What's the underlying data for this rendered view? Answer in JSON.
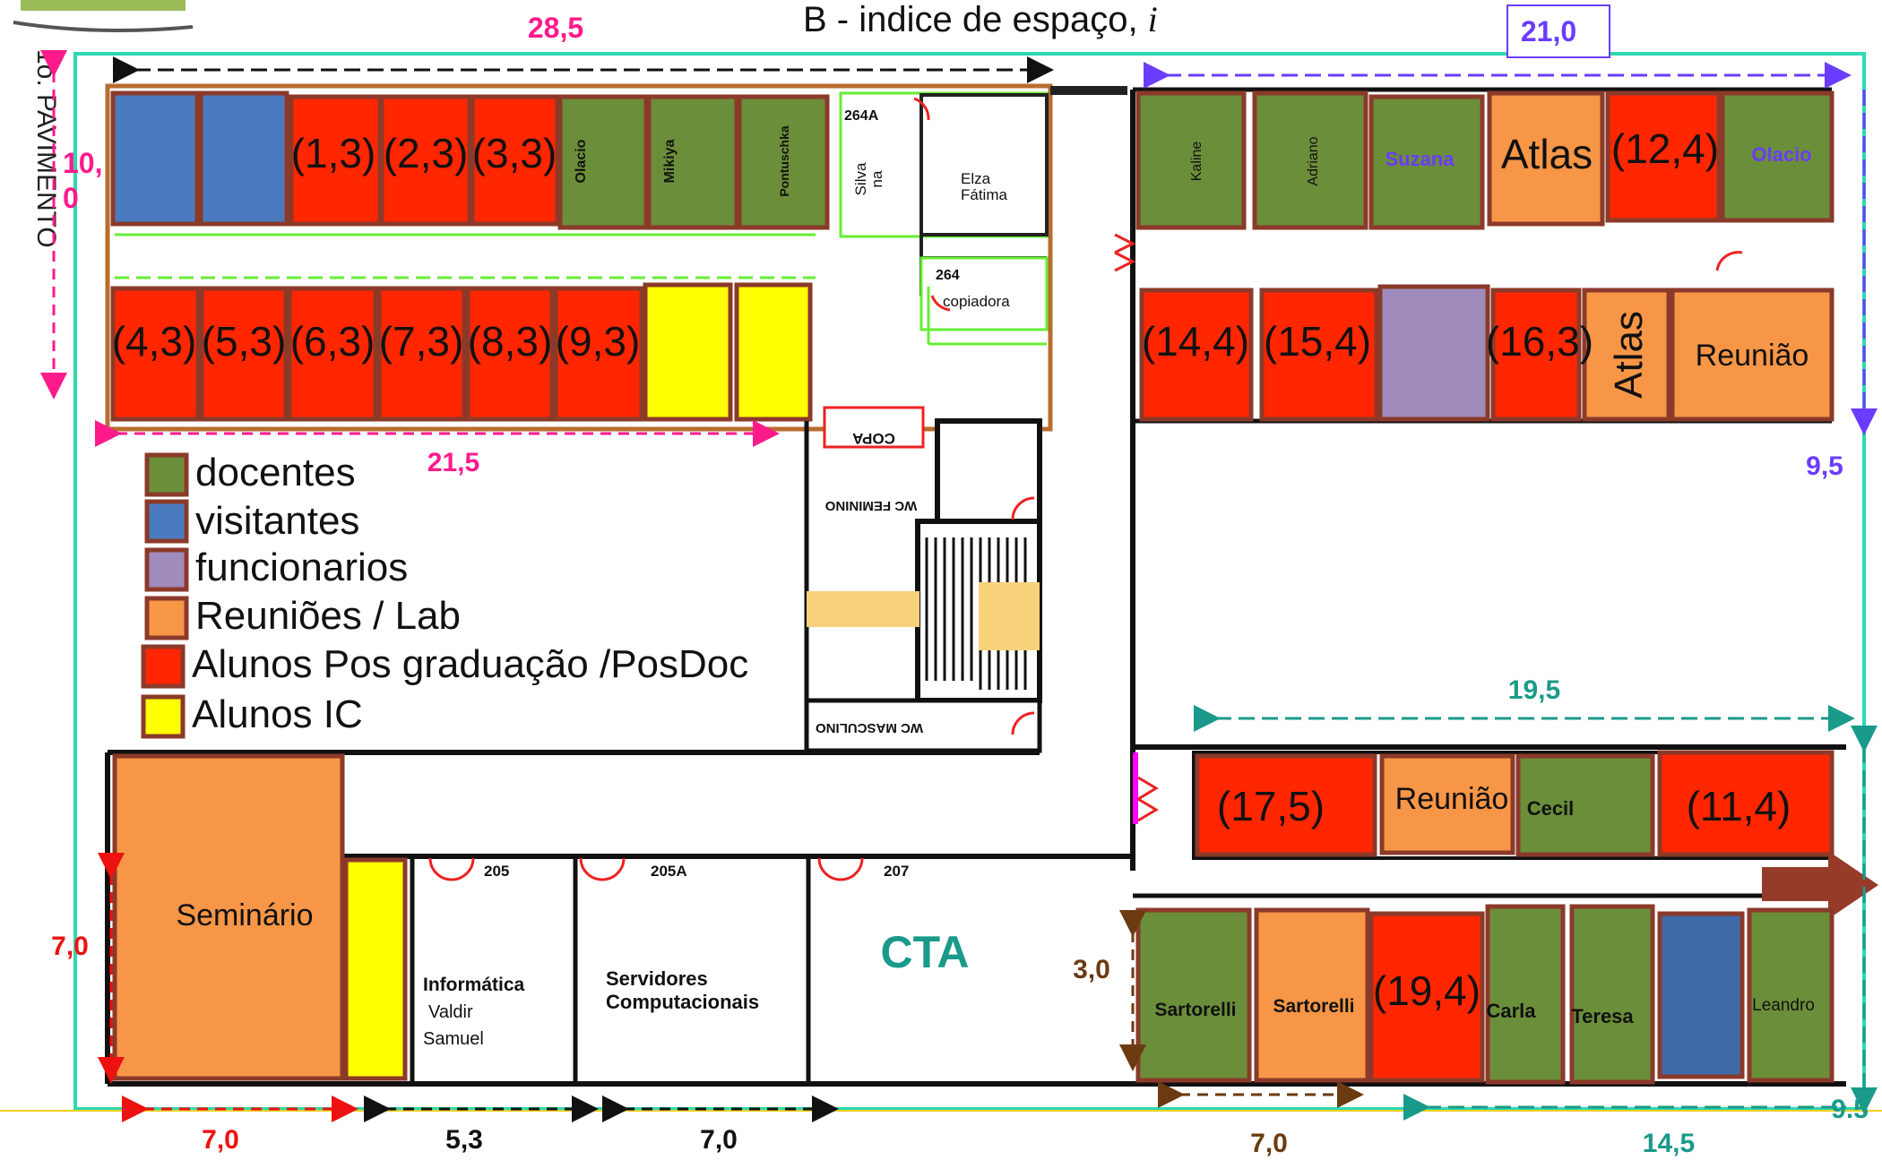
{
  "title": "B - indice de espaço, ",
  "title_symbol": "i",
  "floor_label": "1o. PAVIMENTO",
  "legend": [
    {
      "label": "docentes",
      "color": "#6b8e3a"
    },
    {
      "label": "visitantes",
      "color": "#4a7bbf"
    },
    {
      "label": "funcionarios",
      "color": "#a08cbc"
    },
    {
      "label": "Reuniões / Lab",
      "color": "#f79646"
    },
    {
      "label": "Alunos Pos graduação /PosDoc",
      "color": "#ff2600"
    },
    {
      "label": "Alunos IC",
      "color": "#ffff00"
    }
  ],
  "dimensions": {
    "top_left_width": "28,5",
    "top_right_width": "21,0",
    "left_height_a": "10,",
    "left_height_b": "0",
    "left_block_width": "21,5",
    "right_height": "9,5",
    "middle_right_width": "19,5",
    "seminario_height": "7,0",
    "cta_gap": "3,0",
    "bottom_1": "7,0",
    "bottom_2": "5,3",
    "bottom_3": "7,0",
    "bottom_4": "7,0",
    "bottom_5": "14,5",
    "bottom_right_height": "9.5"
  },
  "rooms": {
    "top_left_top": [
      "(1,3)",
      "(2,3)",
      "(3,3)",
      "Olacio",
      "Mikiya",
      "Pontuschka"
    ],
    "top_left_bottom": [
      "(4,3)",
      "(5,3)",
      "(6,3)",
      "(7,3)",
      "(8,3)",
      "(9,3)"
    ],
    "room_264A": "264A",
    "silva_1": "Silva",
    "silva_2": "na",
    "elza_1": "Elza",
    "elza_2": "Fátima",
    "room_264": "264",
    "copiadora": "copiadora",
    "copa": "COPA",
    "wc_fem": "WC FEMININO",
    "wc_masc": "WC MASCULINO",
    "top_right_top": [
      "Kaline",
      "Adriano",
      "Suzana",
      "Atlas",
      "(12,4)",
      "Olacio"
    ],
    "top_right_bottom": [
      "(14,4)",
      "(15,4)",
      "(16,3)",
      "Atlas",
      "Reunião"
    ],
    "mid_right": [
      "(17,5)",
      "Reunião",
      "Cecil",
      "(11,4)"
    ],
    "bottom_right": [
      "Sartorelli",
      "Sartorelli",
      "(19,4)",
      "Carla",
      "Teresa",
      "Leandro"
    ],
    "seminario": "Seminário",
    "room_205": "205",
    "room_205A": "205A",
    "room_207": "207",
    "informatica_1": "Informática",
    "informatica_2": "Valdir",
    "informatica_3": "Samuel",
    "servidores_1": "Servidores",
    "servidores_2": "Computacionais",
    "cta": "CTA"
  },
  "colors": {
    "docentes": "#6b8e3a",
    "visitantes": "#4a7bbf",
    "funcionarios": "#a08cbc",
    "reunioes": "#f79646",
    "alunos_pos": "#ff2600",
    "alunos_ic": "#ffff00",
    "outline": "#8b3a2a",
    "building": "#2ed8b0",
    "magenta": "#ff1a8c",
    "purple": "#6a3cff",
    "teal": "#1a9a8a",
    "brown": "#6b3a10",
    "red": "#ee1111"
  }
}
